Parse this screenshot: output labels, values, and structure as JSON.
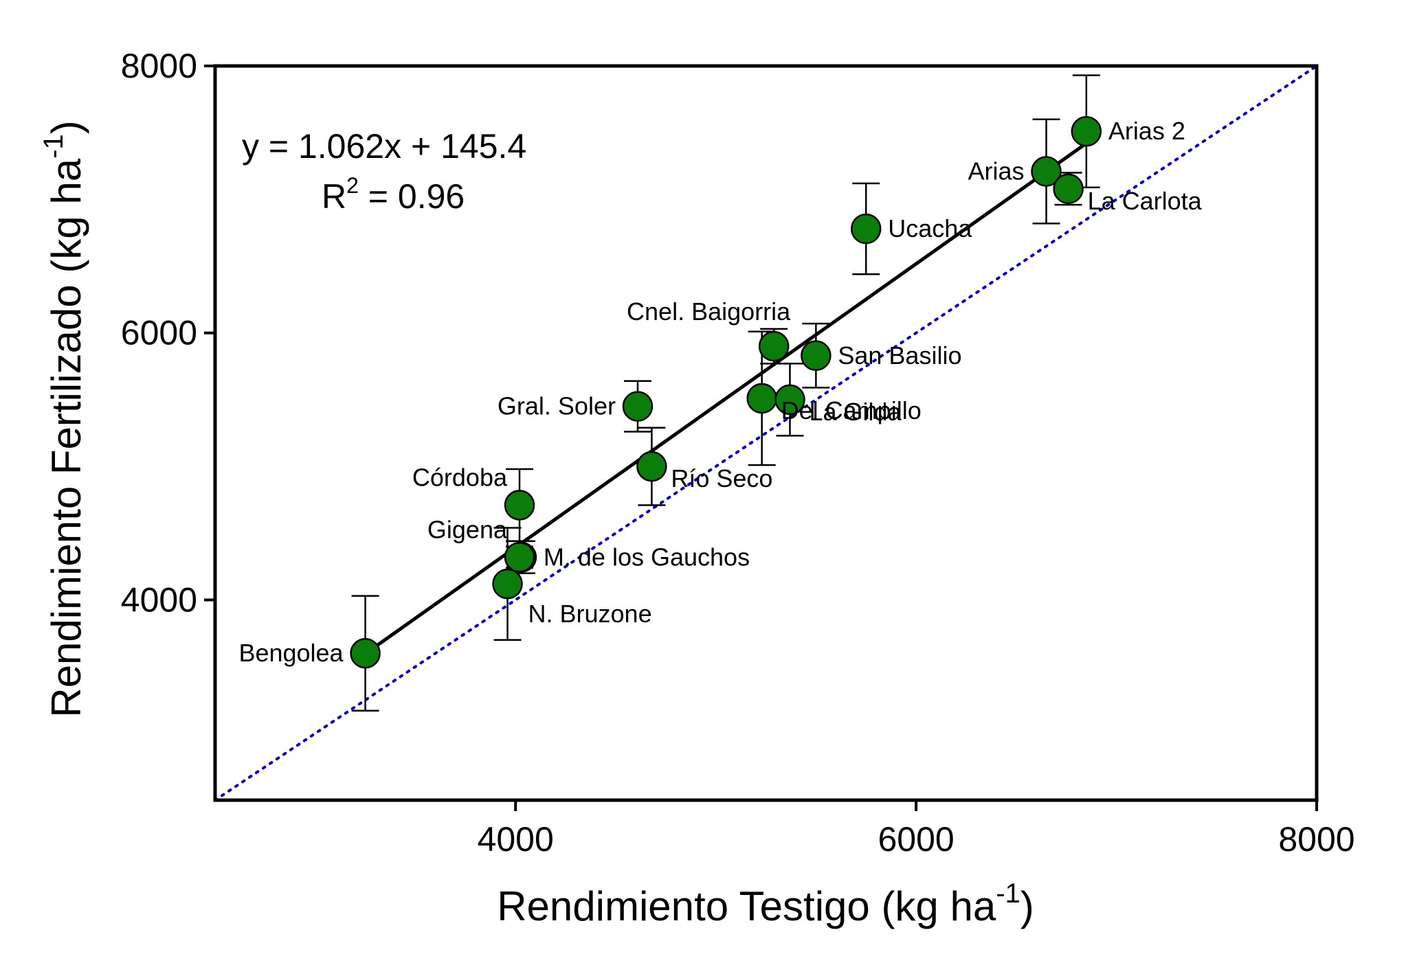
{
  "chart_data": {
    "type": "scatter",
    "xlabel": "Rendimiento Testigo (kg ha",
    "xlabel_sup": "-1",
    "xlabel_end": ")",
    "ylabel": "Rendimiento Fertilizado (kg ha",
    "ylabel_sup": "-1",
    "ylabel_end": ")",
    "xlim": [
      2500,
      8000
    ],
    "ylim": [
      2500,
      8000
    ],
    "x_ticks": [
      4000,
      6000,
      8000
    ],
    "y_ticks": [
      4000,
      6000,
      8000
    ],
    "grid": false,
    "equation": "y = 1.062x + 145.4",
    "r2_prefix": "R",
    "r2_sup": "2",
    "r2_suffix": " = 0.96",
    "regression": {
      "slope": 1.062,
      "intercept": 145.4,
      "x_range": [
        3250,
        6850
      ],
      "color": "#000000"
    },
    "identity_line": {
      "color": "#0000cc",
      "style": "dotted"
    },
    "point_color": "#0a7d0a",
    "points": [
      {
        "label": "Bengolea",
        "x": 3250,
        "y": 3600,
        "err": 430,
        "label_side": "left"
      },
      {
        "label": "N. Bruzone",
        "x": 3960,
        "y": 4120,
        "err": 420,
        "label_side": "below-right"
      },
      {
        "label": "M. de los Gauchos",
        "x": 4030,
        "y": 4320,
        "err": 120,
        "label_side": "right"
      },
      {
        "label": "Gigena",
        "x": 4020,
        "y": 4320,
        "err": 80,
        "label_side": "upper-left"
      },
      {
        "label": "Córdoba",
        "x": 4020,
        "y": 4710,
        "err": 270,
        "label_side": "upper-left"
      },
      {
        "label": "Río Seco",
        "x": 4680,
        "y": 5000,
        "err": 290,
        "label_side": "lower-right"
      },
      {
        "label": "Gral. Soler",
        "x": 4610,
        "y": 5450,
        "err": 190,
        "label_side": "left"
      },
      {
        "label": "Cnel. Baigorria",
        "x": 5290,
        "y": 5900,
        "err": 130,
        "label_side": "above"
      },
      {
        "label": "San Basilio",
        "x": 5500,
        "y": 5830,
        "err": 240,
        "label_side": "right"
      },
      {
        "label": "Del Campillo",
        "x": 5230,
        "y": 5510,
        "err": 500,
        "label_side": "lower-right"
      },
      {
        "label": "La Gilda",
        "x": 5370,
        "y": 5500,
        "err": 270,
        "label_side": "lower-right"
      },
      {
        "label": "Ucacha",
        "x": 5750,
        "y": 6780,
        "err": 340,
        "label_side": "right"
      },
      {
        "label": "Arias",
        "x": 6650,
        "y": 7210,
        "err": 390,
        "label_side": "left"
      },
      {
        "label": "La Carlota",
        "x": 6760,
        "y": 7080,
        "err": 120,
        "label_side": "lower-right"
      },
      {
        "label": "Arias 2",
        "x": 6850,
        "y": 7510,
        "err": 420,
        "label_side": "right"
      }
    ]
  }
}
